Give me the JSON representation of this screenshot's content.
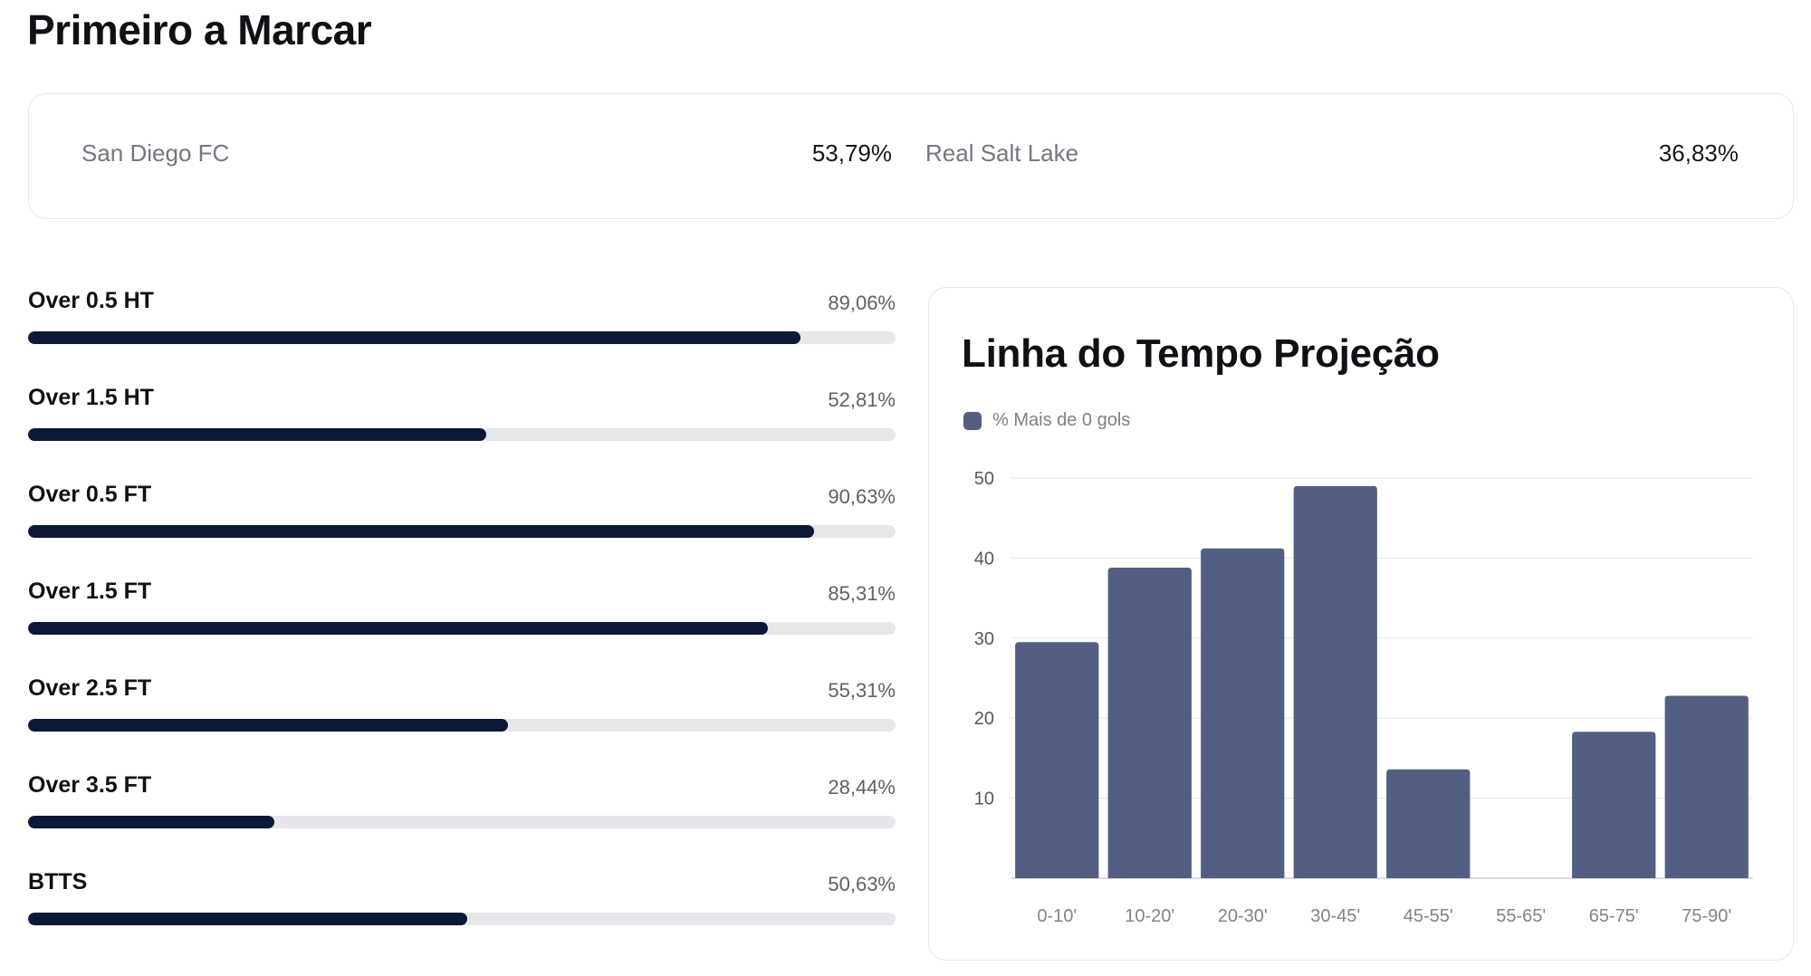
{
  "page": {
    "title": "Primeiro a Marcar"
  },
  "first_to_score": {
    "home": {
      "team": "San Diego FC",
      "value": "53,79%"
    },
    "away": {
      "team": "Real Salt Lake",
      "value": "36,83%"
    }
  },
  "markets": [
    {
      "label": "Over 0.5 HT",
      "value": "89,06%",
      "percent": 89.06
    },
    {
      "label": "Over 1.5 HT",
      "value": "52,81%",
      "percent": 52.81
    },
    {
      "label": "Over 0.5 FT",
      "value": "90,63%",
      "percent": 90.63
    },
    {
      "label": "Over 1.5 FT",
      "value": "85,31%",
      "percent": 85.31
    },
    {
      "label": "Over 2.5 FT",
      "value": "55,31%",
      "percent": 55.31
    },
    {
      "label": "Over 3.5 FT",
      "value": "28,44%",
      "percent": 28.44
    },
    {
      "label": "BTTS",
      "value": "50,63%",
      "percent": 50.63
    }
  ],
  "timeline": {
    "title": "Linha do Tempo Projeção"
  },
  "chart_data": {
    "type": "bar",
    "title": "Linha do Tempo Projeção",
    "xlabel": "",
    "ylabel": "",
    "categories": [
      "0-10'",
      "10-20'",
      "20-30'",
      "30-45'",
      "45-55'",
      "55-65'",
      "65-75'",
      "75-90'"
    ],
    "series": [
      {
        "name": "% Mais de 0 gols",
        "values": [
          29.5,
          38.8,
          41.2,
          49.0,
          13.6,
          0,
          18.3,
          22.8
        ],
        "color": "#525e82"
      }
    ],
    "yticks": [
      10,
      20,
      30,
      40,
      50
    ],
    "ylim": [
      0,
      50
    ],
    "grid": true,
    "legend": "top-left"
  }
}
